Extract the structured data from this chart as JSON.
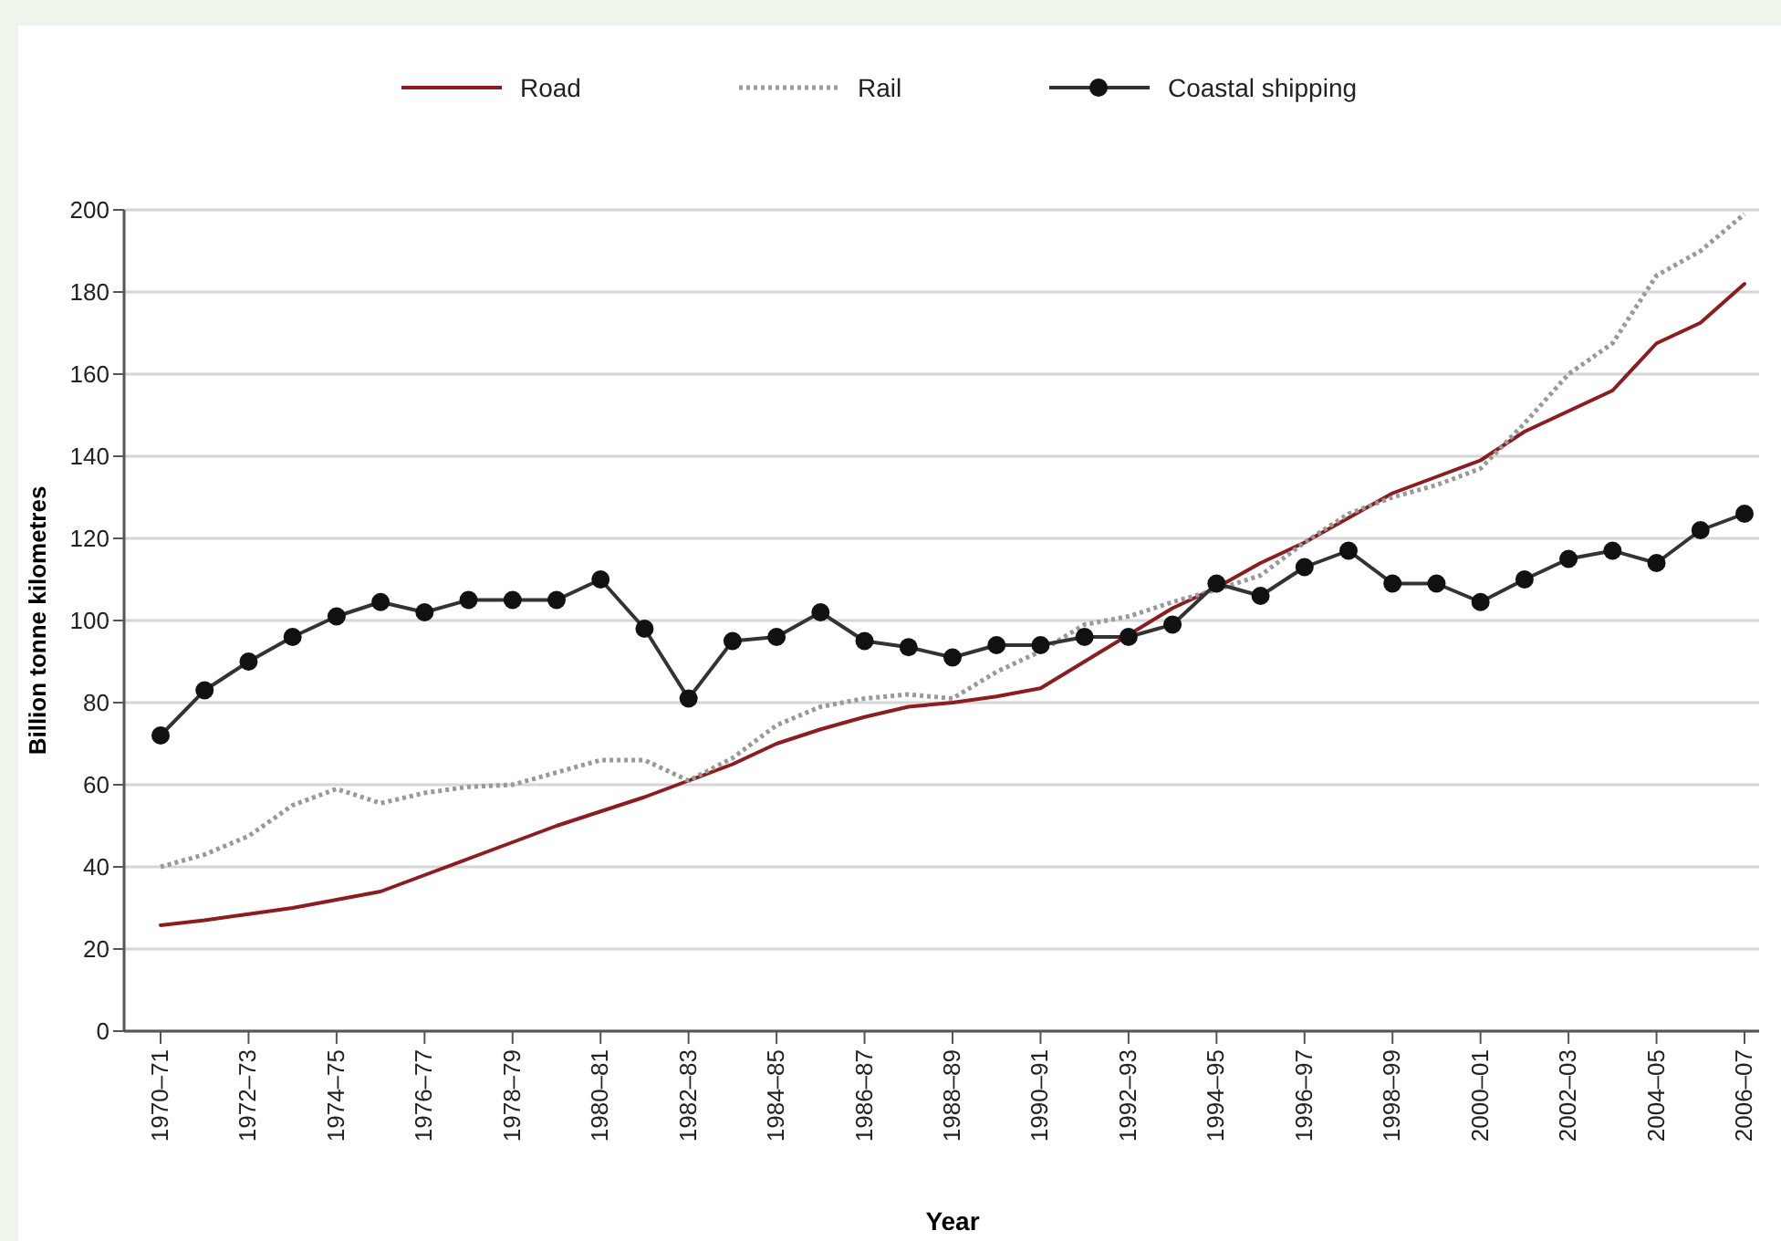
{
  "chart_data": {
    "type": "line",
    "xlabel": "Year",
    "ylabel": "Billion tonne kilometres",
    "categories": [
      "1970–71",
      null,
      "1972–73",
      null,
      "1974–75",
      null,
      "1976–77",
      null,
      "1978–79",
      null,
      "1980–81",
      null,
      "1982–83",
      null,
      "1984–85",
      null,
      "1986–87",
      null,
      "1988–89",
      null,
      "1990–91",
      null,
      "1992–93",
      null,
      "1994–95",
      null,
      "1996–97",
      null,
      "1998–99",
      null,
      "2000–01",
      null,
      "2002–03",
      null,
      "2004–05",
      null,
      "2006–07"
    ],
    "series": [
      {
        "name": "Road",
        "color": "#8c1c20",
        "line_style": "solid",
        "marker": "none",
        "values": [
          25.8,
          27,
          28.5,
          30,
          32,
          34,
          38,
          42,
          46,
          50,
          53.5,
          57,
          61,
          65,
          70,
          73.5,
          76.5,
          79,
          80,
          81.5,
          83.5,
          90,
          96.5,
          103,
          108,
          114,
          119,
          125,
          131,
          135,
          139,
          146,
          151,
          156,
          167.5,
          172.5,
          182
        ]
      },
      {
        "name": "Rail",
        "color": "#999999",
        "line_style": "dotted",
        "marker": "none",
        "values": [
          40,
          43,
          47.5,
          55,
          59,
          55.5,
          58,
          59.5,
          60,
          63,
          66,
          66,
          61,
          66.5,
          74.5,
          79,
          81,
          82,
          81,
          87.5,
          92.5,
          99,
          101,
          104.5,
          107.5,
          111,
          119,
          126,
          130,
          133,
          137,
          148,
          160,
          167.5,
          184,
          190,
          199
        ]
      },
      {
        "name": "Coastal shipping",
        "color": "#333333",
        "line_style": "solid",
        "marker": "circle",
        "values": [
          72,
          83,
          90,
          96,
          101,
          104.5,
          102,
          105,
          105,
          105,
          110,
          98,
          81,
          95,
          96,
          102,
          95,
          93.5,
          91,
          94,
          94,
          96,
          96,
          99,
          109,
          106,
          113,
          117,
          109,
          109,
          104.5,
          110,
          115,
          117,
          114,
          122,
          126
        ]
      }
    ],
    "ylim": [
      0,
      200
    ],
    "yticks": [
      0,
      20,
      40,
      60,
      80,
      100,
      120,
      140,
      160,
      180,
      200
    ],
    "grid": "y",
    "legend": "top"
  }
}
